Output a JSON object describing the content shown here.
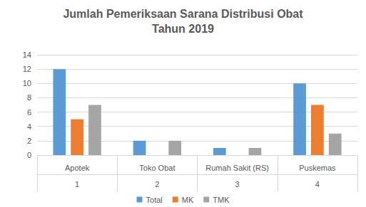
{
  "chart_data": {
    "type": "bar",
    "title": "Jumlah Pemeriksaan Sarana Distribusi Obat\nTahun 2019",
    "categories": [
      "Apotek",
      "Toko Obat",
      "Rumah Sakit (RS)",
      "Puskemas"
    ],
    "category_numbers": [
      "1",
      "2",
      "3",
      "4"
    ],
    "series": [
      {
        "name": "Total",
        "color": "#5b9bd5",
        "values": [
          12,
          2,
          1,
          10
        ]
      },
      {
        "name": "MK",
        "color": "#ed7d31",
        "values": [
          5,
          0,
          0,
          7
        ]
      },
      {
        "name": "TMK",
        "color": "#a5a5a5",
        "values": [
          7,
          2,
          1,
          3
        ]
      }
    ],
    "ylim": [
      0,
      14
    ],
    "yticks": [
      0,
      2,
      4,
      6,
      8,
      10,
      12,
      14
    ],
    "grid": true,
    "legend": "bottom"
  }
}
